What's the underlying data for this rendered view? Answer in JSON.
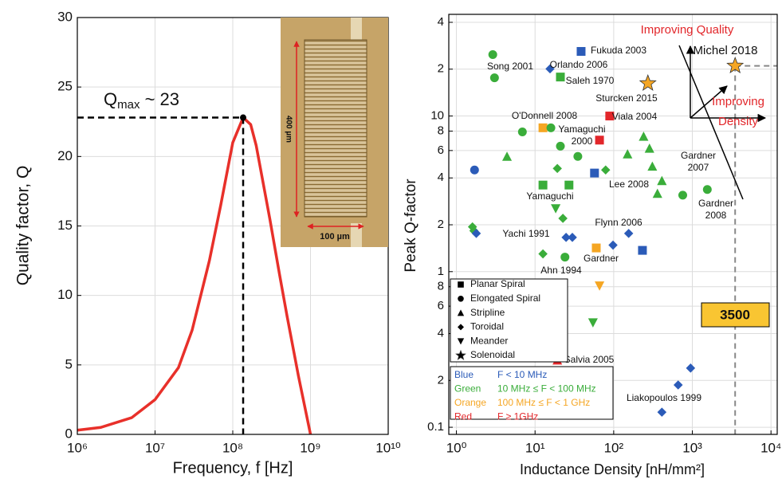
{
  "chart_data": [
    {
      "type": "line",
      "xlabel": "Frequency, f [Hz]",
      "ylabel": "Quality factor, Q",
      "xscale": "log",
      "xlim": [
        1000000,
        10000000000
      ],
      "xticks": [
        {
          "value": 1000000,
          "label": "10⁶"
        },
        {
          "value": 10000000,
          "label": "10⁷"
        },
        {
          "value": 100000000,
          "label": "10⁸"
        },
        {
          "value": 1000000000,
          "label": "10⁹"
        },
        {
          "value": 10000000000,
          "label": "10¹⁰"
        }
      ],
      "ylim": [
        0,
        30
      ],
      "yticks": [
        0,
        5,
        10,
        15,
        20,
        25,
        30
      ],
      "grid": true,
      "color": "#e8302a",
      "x": [
        1000000,
        2000000,
        5000000,
        10000000,
        20000000,
        30000000,
        50000000,
        70000000,
        100000000,
        136000000,
        170000000,
        200000000,
        300000000,
        400000000,
        500000000,
        700000000,
        1000000000
      ],
      "values": [
        0.3,
        0.5,
        1.2,
        2.5,
        4.8,
        7.5,
        12.5,
        16.5,
        21,
        22.8,
        22.3,
        20.8,
        15.5,
        11.5,
        8.5,
        4.2,
        0
      ],
      "peak": {
        "x": 136000000,
        "y": 22.8,
        "label": "Q",
        "label_sub": "max",
        "label_rest": " ~ 23"
      },
      "inset": {
        "height_label": "400 µm",
        "width_label": "100 µm"
      }
    },
    {
      "type": "scatter",
      "xlabel": "Inductance Density [nH/mm²]",
      "ylabel": "Peak Q-factor",
      "xscale": "log",
      "yscale": "log",
      "xlim": [
        0.8,
        12000
      ],
      "xticks": [
        {
          "value": 1,
          "label": "10⁰"
        },
        {
          "value": 10,
          "label": "10¹"
        },
        {
          "value": 100,
          "label": "10²"
        },
        {
          "value": 1000,
          "label": "10³"
        },
        {
          "value": 10000,
          "label": "10⁴"
        }
      ],
      "ylim": [
        0.09,
        45
      ],
      "yticks": [
        0.1,
        {
          "value": 0.2,
          "label": "2"
        },
        {
          "value": 0.4,
          "label": "4"
        },
        {
          "value": 0.6,
          "label": "6"
        },
        {
          "value": 0.8,
          "label": "8"
        },
        1,
        2,
        4,
        6,
        8,
        10,
        {
          "value": 20,
          "label": "2"
        },
        {
          "value": 40,
          "label": "4"
        }
      ],
      "grid": true,
      "series": [
        {
          "name": "Planar Spiral",
          "marker": "square",
          "x": [
            38.5,
            21,
            89,
            12.6,
            66,
            57,
            12.6,
            27,
            60,
            232
          ],
          "values": [
            26,
            17.8,
            10,
            8.4,
            7,
            4.3,
            3.6,
            3.6,
            1.42,
            1.37
          ],
          "colors": [
            "#2b5bb8",
            "#3aad3a",
            "#e2262a",
            "#f5a623",
            "#e2262a",
            "#2b5bb8",
            "#3aad3a",
            "#3aad3a",
            "#f5a623",
            "#2b5bb8"
          ]
        },
        {
          "name": "Elongated Spiral",
          "marker": "circle",
          "x": [
            2.9,
            3.05,
            6.9,
            15.9,
            21,
            35,
            1.7,
            755,
            1550,
            24
          ],
          "values": [
            24.8,
            17.6,
            7.9,
            8.4,
            6.4,
            5.5,
            4.5,
            3.1,
            3.37,
            1.24
          ],
          "colors": [
            "#3aad3a",
            "#3aad3a",
            "#3aad3a",
            "#3aad3a",
            "#3aad3a",
            "#3aad3a",
            "#2b5bb8",
            "#3aad3a",
            "#3aad3a",
            "#3aad3a"
          ]
        },
        {
          "name": "Stripline",
          "marker": "triangle-up",
          "x": [
            4.4,
            150,
            240,
            285,
            310,
            410,
            360,
            19.2
          ],
          "values": [
            5.5,
            5.7,
            7.4,
            6.2,
            4.75,
            3.84,
            3.18,
            0.27
          ],
          "colors": [
            "#3aad3a",
            "#3aad3a",
            "#3aad3a",
            "#3aad3a",
            "#3aad3a",
            "#3aad3a",
            "#3aad3a",
            "#e2262a"
          ]
        },
        {
          "name": "Toroidal",
          "marker": "diamond",
          "x": [
            15.5,
            19.2,
            79,
            22.6,
            1.6,
            1.67,
            1.79,
            24.8,
            29.8,
            155,
            98,
            12.6,
            950,
            660,
            410
          ],
          "values": [
            20.1,
            4.6,
            4.5,
            2.2,
            1.94,
            1.83,
            1.76,
            1.66,
            1.66,
            1.76,
            1.48,
            1.3,
            0.24,
            0.187,
            0.125
          ],
          "colors": [
            "#2b5bb8",
            "#3aad3a",
            "#3aad3a",
            "#3aad3a",
            "#3aad3a",
            "#3aad3a",
            "#2b5bb8",
            "#2b5bb8",
            "#2b5bb8",
            "#2b5bb8",
            "#2b5bb8",
            "#3aad3a",
            "#2b5bb8",
            "#2b5bb8",
            "#2b5bb8"
          ]
        },
        {
          "name": "Meander",
          "marker": "triangle-down",
          "x": [
            18.3,
            66,
            54.5
          ],
          "values": [
            2.54,
            0.81,
            0.47
          ],
          "colors": [
            "#3aad3a",
            "#f5a623",
            "#3aad3a"
          ]
        },
        {
          "name": "Solenoidal",
          "marker": "star",
          "x": [
            272,
            3500
          ],
          "values": [
            16.2,
            21
          ],
          "colors": [
            "#f5a623",
            "#f5a623"
          ]
        }
      ],
      "color_legend": [
        {
          "name": "Blue",
          "range": "F < 10 MHz",
          "color": "#2b5bb8"
        },
        {
          "name": "Green",
          "range": "10 MHz  ≤ F < 100 MHz",
          "color": "#3aad3a"
        },
        {
          "name": "Orange",
          "range": "100 MHz  ≤ F < 1 GHz",
          "color": "#f5a623"
        },
        {
          "name": "Red",
          "range": "F ≥ 1GHz",
          "color": "#e2262a"
        }
      ],
      "annotations": [
        {
          "lines": [
            "Fukuda 2003"
          ]
        },
        {
          "lines": [
            "Song 2001"
          ]
        },
        {
          "lines": [
            "Orlando 2006"
          ]
        },
        {
          "lines": [
            "Saleh 1970"
          ]
        },
        {
          "lines": [
            "Michel 2018"
          ]
        },
        {
          "lines": [
            "Sturcken 2015"
          ]
        },
        {
          "lines": [
            "Viala 2004"
          ]
        },
        {
          "lines": [
            "O'Donnell 2008"
          ]
        },
        {
          "lines": [
            "Yamaguchi",
            "2000"
          ]
        },
        {
          "lines": [
            "Gardner",
            "2007"
          ]
        },
        {
          "lines": [
            "Lee 2008"
          ]
        },
        {
          "lines": [
            "Yamaguchi"
          ]
        },
        {
          "lines": [
            "Gardner",
            "2008"
          ]
        },
        {
          "lines": [
            "Flynn 2006"
          ]
        },
        {
          "lines": [
            "Yachi 1991"
          ]
        },
        {
          "lines": [
            "Gardner"
          ]
        },
        {
          "lines": [
            "Ahn 1994"
          ]
        },
        {
          "lines": [
            "Salvia 2005"
          ]
        },
        {
          "lines": [
            "Liakopoulos 1999"
          ]
        }
      ],
      "density_marker": 3500,
      "quality_arrow": "Improving Quality",
      "density_arrow": [
        "Improving",
        "Density"
      ]
    }
  ]
}
